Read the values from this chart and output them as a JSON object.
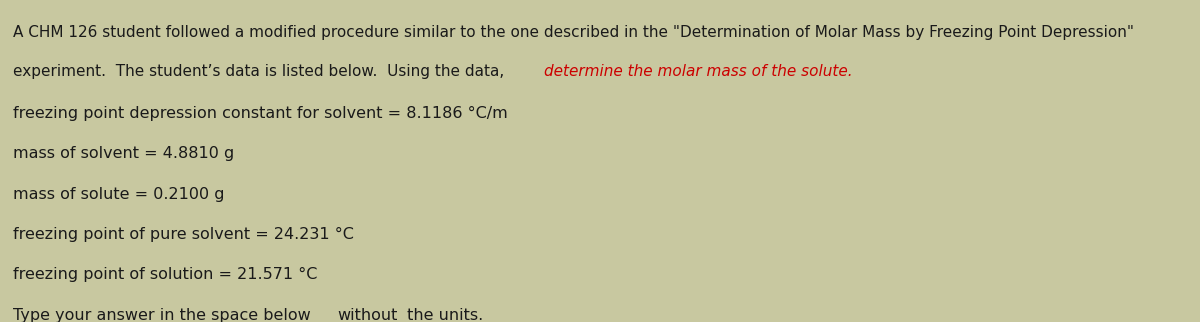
{
  "bg_color": "#c8c8a0",
  "text_color": "#1a1a1a",
  "highlight_color": "#cc0000",
  "line1": "A CHM 126 student followed a modified procedure similar to the one described in the \"Determination of Molar Mass by Freezing Point Depression\"",
  "line2_normal": "experiment.  The student’s data is listed below.  Using the data, ",
  "line2_highlight": "determine the molar mass of the solute.",
  "data_lines": [
    "freezing point depression constant for solvent = 8.1186 °C/m",
    "mass of solvent = 4.8810 g",
    "mass of solute = 0.2100 g",
    "freezing point of pure solvent = 24.231 °C",
    "freezing point of solution = 21.571 °C"
  ],
  "footer": "Type your answer in the space below ",
  "footer_underline": "without",
  "footer_end": " the units.",
  "font_size_header": 11.0,
  "font_size_data": 11.5,
  "figwidth": 12.0,
  "figheight": 3.22
}
